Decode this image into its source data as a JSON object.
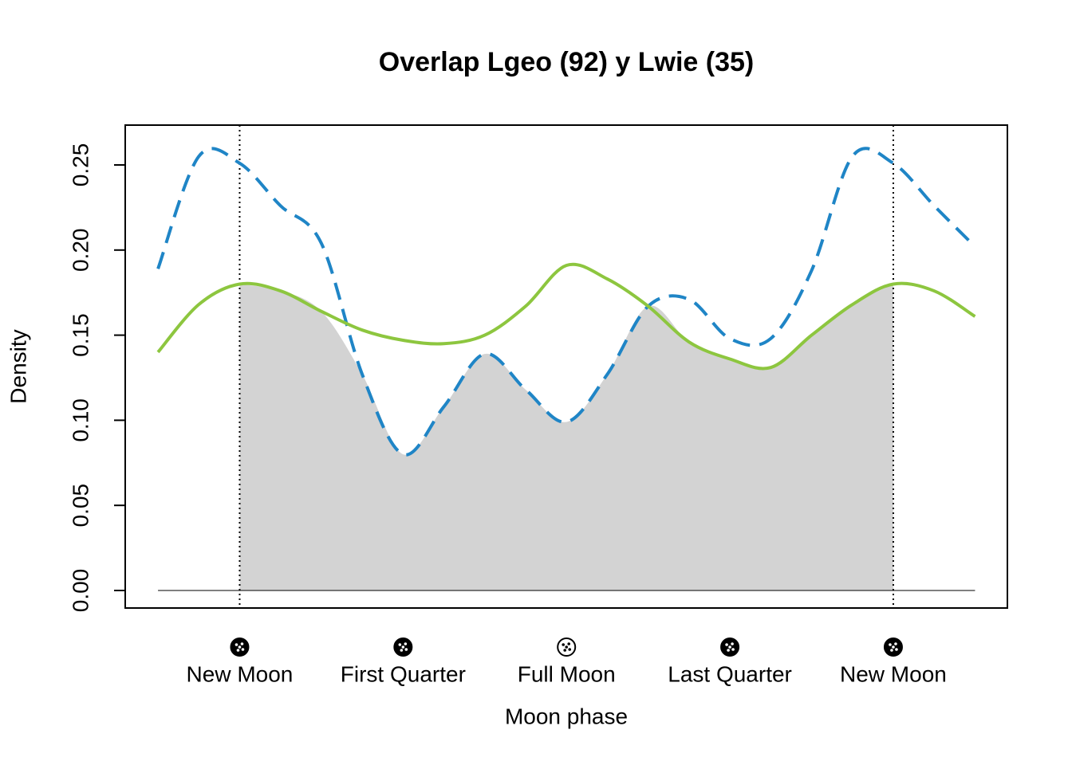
{
  "chart_data": {
    "type": "line",
    "title": "Overlap Lgeo (92) y Lwie (35)",
    "x_label": "Moon phase",
    "y_label": "Density",
    "x": [
      -0.785,
      -0.393,
      0,
      0.393,
      0.785,
      1.178,
      1.571,
      1.963,
      2.356,
      2.749,
      3.142,
      3.534,
      3.927,
      4.32,
      4.712,
      5.105,
      5.498,
      5.89,
      6.283,
      6.676,
      7.069
    ],
    "series": [
      {
        "color": "#1f85c6",
        "dash": true,
        "values": [
          0.189,
          0.255,
          0.251,
          0.226,
          0.204,
          0.127,
          0.08,
          0.108,
          0.139,
          0.118,
          0.099,
          0.127,
          0.167,
          0.171,
          0.148,
          0.148,
          0.188,
          0.255,
          0.251,
          0.226,
          0.202
        ]
      },
      {
        "color": "#8dc63f",
        "dash": false,
        "values": [
          0.14,
          0.168,
          0.18,
          0.176,
          0.164,
          0.153,
          0.147,
          0.145,
          0.15,
          0.167,
          0.191,
          0.183,
          0.167,
          0.146,
          0.136,
          0.131,
          0.15,
          0.168,
          0.18,
          0.176,
          0.161
        ]
      }
    ],
    "overlap_color": "#d3d3d3",
    "xlim": [
      -1.1,
      7.38
    ],
    "ylim": [
      -0.0103,
      0.2734
    ],
    "xticks": [
      {
        "value": 0,
        "label": "New Moon"
      },
      {
        "value": 1.5708,
        "label": "First Quarter"
      },
      {
        "value": 3.1416,
        "label": "Full Moon"
      },
      {
        "value": 4.7124,
        "label": "Last Quarter"
      },
      {
        "value": 6.2832,
        "label": "New Moon"
      }
    ],
    "yticks": [
      {
        "value": 0,
        "label": "0.00"
      },
      {
        "value": 0.05,
        "label": "0.05"
      },
      {
        "value": 0.1,
        "label": "0.10"
      },
      {
        "value": 0.15,
        "label": "0.15"
      },
      {
        "value": 0.2,
        "label": "0.20"
      },
      {
        "value": 0.25,
        "label": "0.25"
      }
    ]
  }
}
